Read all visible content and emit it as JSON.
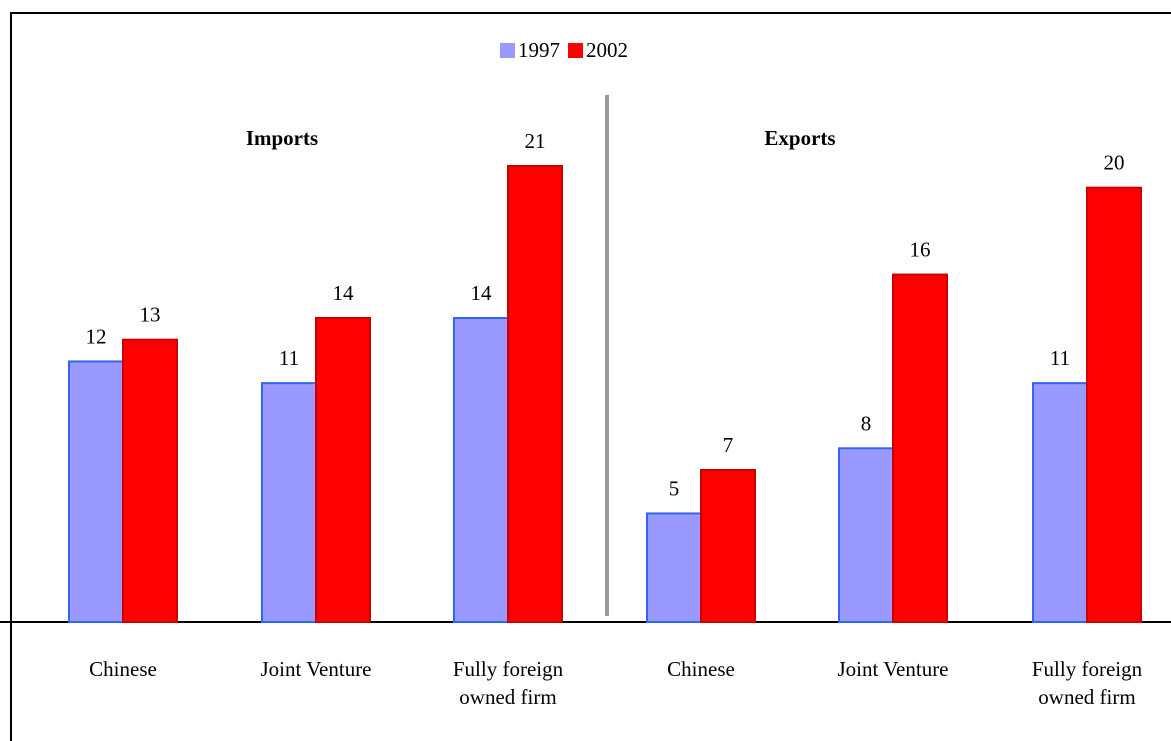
{
  "chart_data": {
    "type": "bar",
    "series": [
      {
        "name": "1997",
        "color": "#9999ff"
      },
      {
        "name": "2002",
        "color": "#ff0000"
      }
    ],
    "panels": [
      {
        "title": "Imports",
        "categories": [
          "Chinese",
          "Joint Venture",
          "Fully foreign owned firm"
        ],
        "values": [
          [
            12,
            11,
            14
          ],
          [
            13,
            14,
            21
          ]
        ]
      },
      {
        "title": "Exports",
        "categories": [
          "Chinese",
          "Joint Venture",
          "Fully foreign owned firm"
        ],
        "values": [
          [
            5,
            8,
            11
          ],
          [
            7,
            16,
            20
          ]
        ]
      }
    ]
  }
}
